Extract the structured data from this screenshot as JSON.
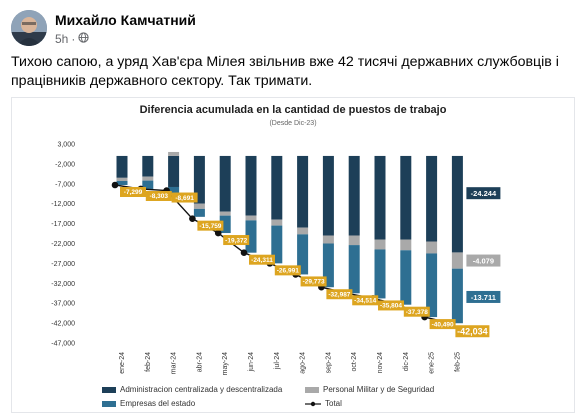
{
  "post": {
    "author": "Михайло Камчатний",
    "time": "5h",
    "separator": "·",
    "audience_icon": "globe-icon",
    "text": "Тихою сапою, а уряд Хав'єра Мілея звільнив вже 42 тисячі державних службовців і працівників державного сектору. Так тримати."
  },
  "colors": {
    "admin": "#1d3f58",
    "military": "#a9a9a9",
    "empresas": "#2e6f92",
    "total": "#111111",
    "label_yellow": "#dda520",
    "label_admin": "#1d3f58",
    "label_empresas": "#2e6f92"
  },
  "chart_data": {
    "type": "bar",
    "title": "Diferencia acumulada en la cantidad de puestos de trabajo",
    "subtitle": "(Desde Dic-23)",
    "categories": [
      "ene-24",
      "feb-24",
      "mar-24",
      "abr-24",
      "may-24",
      "jun-24",
      "jul-24",
      "ago-24",
      "sep-24",
      "oct-24",
      "nov-24",
      "dic-24",
      "ene-25",
      "feb-25"
    ],
    "ylim": [
      -47000,
      3000
    ],
    "yticks": [
      "3,000",
      "-2,000",
      "-7,000",
      "-12,000",
      "-17,000",
      "-22,000",
      "-27,000",
      "-32,000",
      "-37,000",
      "-42,000",
      "-47,000"
    ],
    "series": [
      {
        "name": "Administracion centralizada y descentralizada",
        "values": [
          -5500,
          -5200,
          -7800,
          -12000,
          -14000,
          -15000,
          -16000,
          -18000,
          -20000,
          -20000,
          -21000,
          -21000,
          -21500,
          -24244
        ]
      },
      {
        "name": "Personal Militar y de Seguridad",
        "values": [
          -800,
          -1000,
          1000,
          -1300,
          -1000,
          -1200,
          -1500,
          -1700,
          -2000,
          -2400,
          -2500,
          -2700,
          -3000,
          -4079
        ]
      },
      {
        "name": "Empresas del estado",
        "values": [
          -1000,
          -2100,
          -1900,
          -2000,
          -4372,
          -8111,
          -9491,
          -10073,
          -10987,
          -12114,
          -12304,
          -13678,
          -15990,
          -13711
        ]
      },
      {
        "name": "Total",
        "values": [
          -7299,
          -8303,
          -8691,
          -15759,
          -19372,
          -24311,
          -26991,
          -29773,
          -32987,
          -34514,
          -35804,
          -37378,
          -40490,
          -42034
        ]
      }
    ],
    "total_labels": [
      "-7,299",
      "-8,303",
      "-8,691",
      "-15,759",
      "-19,372",
      "-24,311",
      "-26,991",
      "-29,773",
      "-32,987",
      "-34,514",
      "-35,804",
      "-37,378",
      "-40,490",
      "-42,034"
    ],
    "end_labels": {
      "admin": "-24.244",
      "military": "-4.079",
      "empresas": "-13.711"
    },
    "legend_placement": "bottom",
    "grid": false
  },
  "legend": {
    "admin": "Administracion centralizada y descentralizada",
    "military": "Personal Militar y de Seguridad",
    "empresas": "Empresas del estado",
    "total": "Total"
  }
}
